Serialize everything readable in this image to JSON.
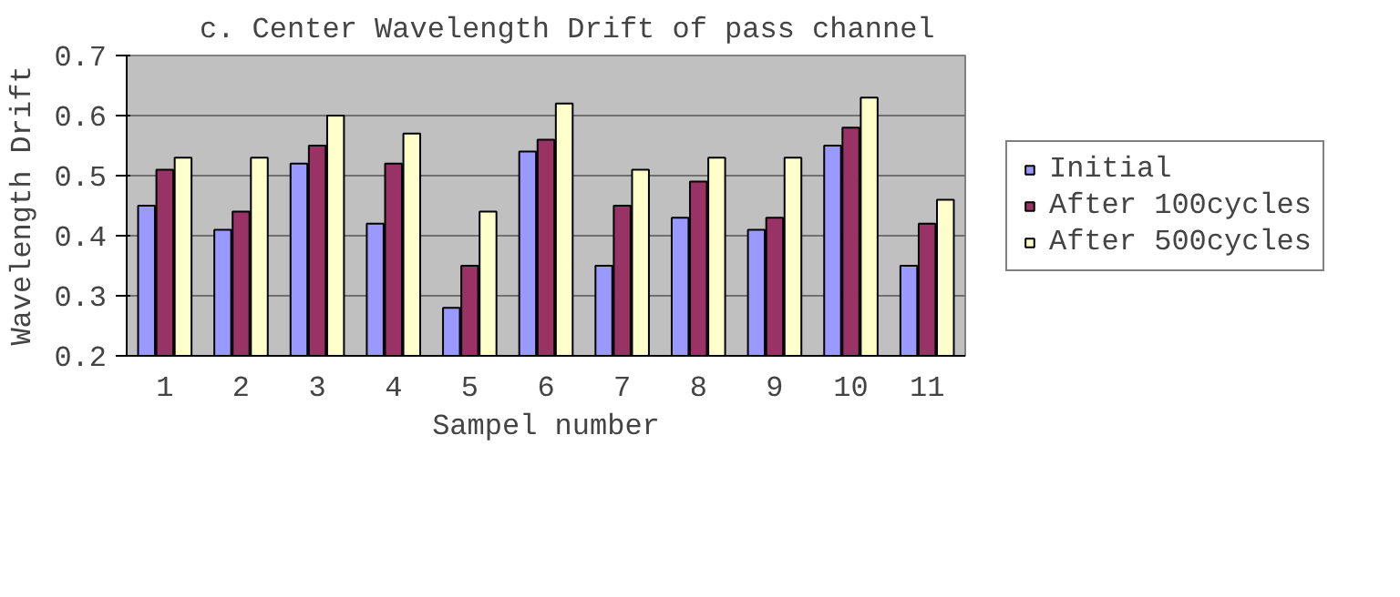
{
  "chart_data": {
    "type": "bar",
    "title": "c. Center Wavelength Drift of pass channel",
    "xlabel": "Sampel number",
    "ylabel": "Wavelength Drift",
    "categories": [
      "1",
      "2",
      "3",
      "4",
      "5",
      "6",
      "7",
      "8",
      "9",
      "10",
      "11"
    ],
    "series": [
      {
        "name": "Initial",
        "color": "#9999ff",
        "values": [
          0.45,
          0.41,
          0.52,
          0.42,
          0.28,
          0.54,
          0.35,
          0.43,
          0.41,
          0.55,
          0.35
        ]
      },
      {
        "name": "After 100cycles",
        "color": "#993366",
        "values": [
          0.51,
          0.44,
          0.55,
          0.52,
          0.35,
          0.56,
          0.45,
          0.49,
          0.43,
          0.58,
          0.42
        ]
      },
      {
        "name": "After 500cycles",
        "color": "#ffffcc",
        "values": [
          0.53,
          0.53,
          0.6,
          0.57,
          0.44,
          0.62,
          0.51,
          0.53,
          0.53,
          0.63,
          0.46
        ]
      }
    ],
    "ylim": [
      0.2,
      0.7
    ],
    "yticks": [
      {
        "value": 0.2,
        "label": "0.2"
      },
      {
        "value": 0.3,
        "label": "0.3"
      },
      {
        "value": 0.4,
        "label": "0.4"
      },
      {
        "value": 0.5,
        "label": "0.5"
      },
      {
        "value": 0.6,
        "label": "0.6"
      },
      {
        "value": 0.7,
        "label": "0.7"
      }
    ],
    "grid": "y",
    "legend": "right"
  }
}
